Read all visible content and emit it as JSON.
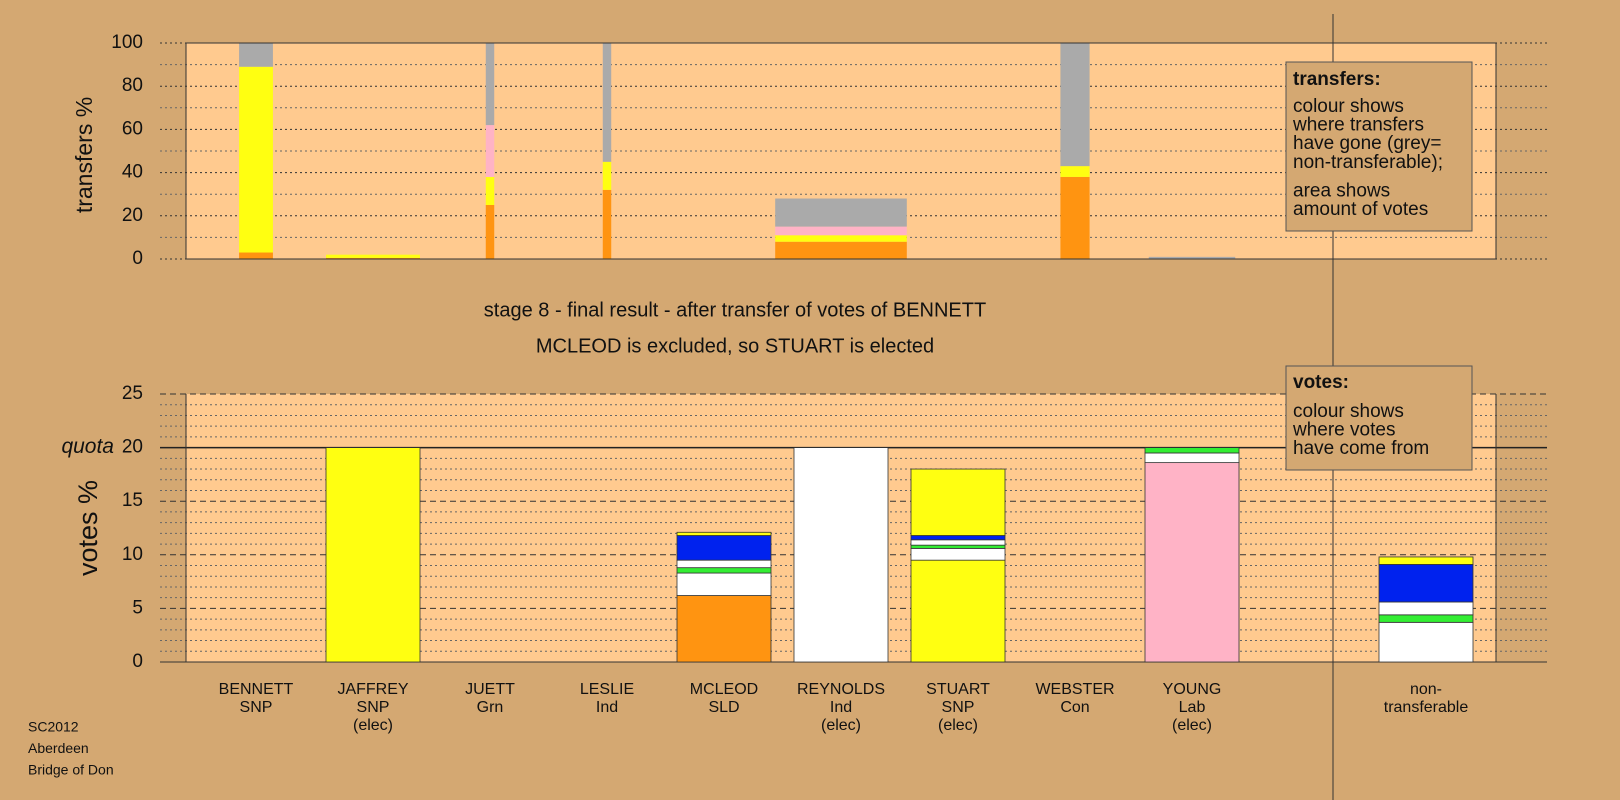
{
  "chart_data": [
    {
      "type": "bar",
      "ylabel": "transfers %",
      "ylim": [
        0,
        100
      ],
      "yticks": [
        0,
        20,
        40,
        60,
        80,
        100
      ],
      "minor_yticks": [
        10,
        30,
        50,
        70,
        90
      ],
      "widths": [
        0.36,
        1.0,
        0.09,
        0.09,
        0,
        1.4,
        0,
        0.31,
        0.92,
        0
      ],
      "stacks": [
        [
          {
            "color": "#ff9411",
            "value": 3
          },
          {
            "color": "#ffff11",
            "value": 86
          },
          {
            "color": "#aaaaaa",
            "value": 11
          }
        ],
        [
          {
            "color": "#ff9411",
            "value": 0.5
          },
          {
            "color": "#ffff11",
            "value": 1.5
          }
        ],
        [
          {
            "color": "#ff9411",
            "value": 25
          },
          {
            "color": "#ffff11",
            "value": 13
          },
          {
            "color": "#ffb3c6",
            "value": 24
          },
          {
            "color": "#aaaaaa",
            "value": 38
          }
        ],
        [
          {
            "color": "#ff9411",
            "value": 32
          },
          {
            "color": "#ffff11",
            "value": 13
          },
          {
            "color": "#aaaaaa",
            "value": 55
          }
        ],
        [],
        [
          {
            "color": "#ff9411",
            "value": 8
          },
          {
            "color": "#ffff11",
            "value": 3
          },
          {
            "color": "#ffb3c6",
            "value": 4
          },
          {
            "color": "#aaaaaa",
            "value": 13
          }
        ],
        [],
        [
          {
            "color": "#ff9411",
            "value": 38
          },
          {
            "color": "#ffff11",
            "value": 5
          },
          {
            "color": "#aaaaaa",
            "value": 57
          }
        ],
        [
          {
            "color": "#aaaaaa",
            "value": 1
          }
        ],
        []
      ],
      "note": {
        "title": "transfers:",
        "paragraphs": [
          [
            "colour shows",
            "where transfers",
            "have gone (grey=",
            "non-transferable);"
          ],
          [
            "area shows",
            "amount of votes"
          ]
        ]
      }
    },
    {
      "type": "bar",
      "title": "stage 8 - final result - after transfer of votes of BENNETT",
      "subtitle": "MCLEOD is excluded, so STUART is elected",
      "ylabel": "votes %",
      "ylim": [
        0,
        25
      ],
      "yticks": [
        0,
        5,
        10,
        15,
        20,
        25
      ],
      "quota": {
        "value": 20,
        "label": "quota"
      },
      "minor_yticks": [
        1,
        2,
        3,
        4,
        6,
        7,
        8,
        9,
        11,
        12,
        13,
        14,
        16,
        17,
        18,
        19,
        21,
        22,
        23,
        24
      ],
      "categories": [
        [
          "BENNETT",
          "SNP"
        ],
        [
          "JAFFREY",
          "SNP",
          "(elec)"
        ],
        [
          "JUETT",
          "Grn"
        ],
        [
          "LESLIE",
          "Ind"
        ],
        [
          "MCLEOD",
          "SLD"
        ],
        [
          "REYNOLDS",
          "Ind",
          "(elec)"
        ],
        [
          "STUART",
          "SNP",
          "(elec)"
        ],
        [
          "WEBSTER",
          "Con"
        ],
        [
          "YOUNG",
          "Lab",
          "(elec)"
        ],
        [
          "non-",
          "transferable"
        ]
      ],
      "stacks": [
        [],
        [
          {
            "color": "#ffff11",
            "value": 20
          }
        ],
        [],
        [],
        [
          {
            "color": "#ff9411",
            "value": 6.2
          },
          {
            "color": "#ffffff",
            "value": 2.1
          },
          {
            "color": "#33ee33",
            "value": 0.5
          },
          {
            "color": "#ffffff",
            "value": 0.7
          },
          {
            "color": "#0022ee",
            "value": 2.3
          },
          {
            "color": "#ffff11",
            "value": 0.3
          }
        ],
        [
          {
            "color": "#ffffff",
            "value": 20
          }
        ],
        [
          {
            "color": "#ffff11",
            "value": 9.5
          },
          {
            "color": "#ffffff",
            "value": 1.1
          },
          {
            "color": "#33ee33",
            "value": 0.3
          },
          {
            "color": "#ffffff",
            "value": 0.5
          },
          {
            "color": "#0022ee",
            "value": 0.4
          },
          {
            "color": "#ffff11",
            "value": 6.2
          }
        ],
        [],
        [
          {
            "color": "#ffb3c6",
            "value": 18.6
          },
          {
            "color": "#ffffff",
            "value": 0.9
          },
          {
            "color": "#33ee33",
            "value": 0.5
          }
        ],
        [
          {
            "color": "#ffffff",
            "value": 3.7
          },
          {
            "color": "#33ee33",
            "value": 0.7
          },
          {
            "color": "#ffffff",
            "value": 1.2
          },
          {
            "color": "#0022ee",
            "value": 3.5
          },
          {
            "color": "#ffff11",
            "value": 0.7
          }
        ]
      ],
      "note": {
        "title": "votes:",
        "paragraphs": [
          [
            "colour shows",
            "where votes",
            "have come from"
          ]
        ]
      }
    }
  ],
  "footer": [
    "SC2012",
    "Aberdeen",
    "Bridge of Don"
  ]
}
